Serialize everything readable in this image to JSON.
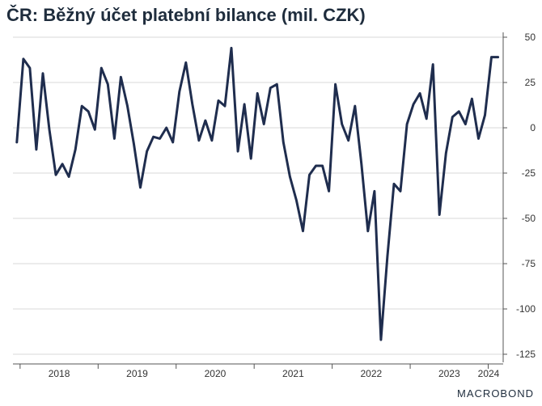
{
  "chart_data": {
    "type": "line",
    "title": "ČR: Běžný účet platební bilance (mil. CZK)",
    "xlabel": "",
    "ylabel": "",
    "ylim": [
      -125,
      50
    ],
    "y_ticks": [
      50,
      25,
      0,
      -25,
      -50,
      -75,
      -100,
      -125
    ],
    "x_tick_labels": [
      "2018",
      "2019",
      "2020",
      "2021",
      "2022",
      "2023",
      "2024"
    ],
    "grid": true,
    "y_axis_side": "right",
    "line_color": "#1f2d4e",
    "series": [
      {
        "x": [
          "2017-12",
          "2018-01",
          "2018-02",
          "2018-03",
          "2018-04",
          "2018-05",
          "2018-06",
          "2018-07",
          "2018-08",
          "2018-09",
          "2018-10",
          "2018-11",
          "2018-12",
          "2019-01",
          "2019-02",
          "2019-03",
          "2019-04",
          "2019-05",
          "2019-06",
          "2019-07",
          "2019-08",
          "2019-09",
          "2019-10",
          "2019-11",
          "2019-12",
          "2020-01",
          "2020-02",
          "2020-03",
          "2020-04",
          "2020-05",
          "2020-06",
          "2020-07",
          "2020-08",
          "2020-09",
          "2020-10",
          "2020-11",
          "2020-12",
          "2021-01",
          "2021-02",
          "2021-03",
          "2021-04",
          "2021-05",
          "2021-06",
          "2021-07",
          "2021-08",
          "2021-09",
          "2021-10",
          "2021-11",
          "2021-12",
          "2022-01",
          "2022-02",
          "2022-03",
          "2022-04",
          "2022-05",
          "2022-06",
          "2022-07",
          "2022-08",
          "2022-09",
          "2022-10",
          "2022-11",
          "2022-12",
          "2023-01",
          "2023-02",
          "2023-03",
          "2023-04",
          "2023-05",
          "2023-06",
          "2023-07",
          "2023-08",
          "2023-09",
          "2023-10",
          "2023-11",
          "2023-12",
          "2024-01",
          "2024-02"
        ],
        "values": [
          -8,
          38,
          33,
          -12,
          30,
          -1,
          -26,
          -20,
          -27,
          -12,
          12,
          9,
          -1,
          33,
          24,
          -6,
          28,
          12,
          -9,
          -33,
          -13,
          -5,
          -6,
          0,
          -8,
          20,
          36,
          13,
          -7,
          4,
          -7,
          15,
          12,
          44,
          -13,
          13,
          -17,
          19,
          2,
          22,
          24,
          -8,
          -27,
          -40,
          -57,
          -26,
          -21,
          -21,
          -35,
          24,
          2,
          -7,
          12,
          -20,
          -57,
          -35,
          -117,
          -71,
          -31,
          -35,
          2,
          13,
          19,
          5,
          35,
          -48,
          -14,
          6,
          9,
          2,
          16,
          -6,
          7,
          39,
          39
        ]
      }
    ]
  },
  "logo_text": "MACROBOND"
}
